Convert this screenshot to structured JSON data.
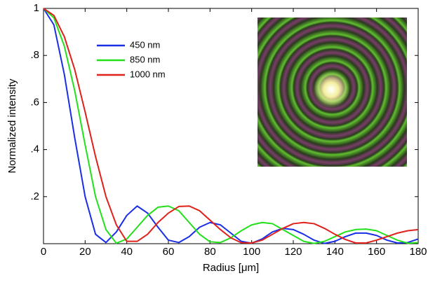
{
  "chart_data": {
    "type": "line",
    "xlabel": "Radius [μm]",
    "ylabel": "Normalized intensity",
    "x": [
      0,
      5,
      10,
      15,
      20,
      25,
      30,
      35,
      40,
      45,
      50,
      55,
      60,
      65,
      70,
      75,
      80,
      85,
      90,
      95,
      100,
      105,
      110,
      115,
      120,
      125,
      130,
      135,
      140,
      145,
      150,
      155,
      160,
      165,
      170,
      175,
      180
    ],
    "series": [
      {
        "name": "450 nm",
        "color": "#1a2ee8",
        "values": [
          1,
          0.93,
          0.72,
          0.45,
          0.2,
          0.04,
          0.005,
          0.05,
          0.12,
          0.16,
          0.13,
          0.07,
          0.015,
          0.005,
          0.03,
          0.07,
          0.09,
          0.08,
          0.045,
          0.01,
          0.002,
          0.02,
          0.05,
          0.065,
          0.06,
          0.04,
          0.015,
          0.001,
          0.01,
          0.03,
          0.045,
          0.045,
          0.035,
          0.015,
          0.003,
          0.005,
          0.02
        ]
      },
      {
        "name": "850 nm",
        "color": "#22e01a",
        "values": [
          1,
          0.96,
          0.84,
          0.65,
          0.42,
          0.2,
          0.06,
          0.002,
          0.02,
          0.07,
          0.12,
          0.155,
          0.16,
          0.14,
          0.09,
          0.04,
          0.008,
          0.005,
          0.025,
          0.055,
          0.08,
          0.09,
          0.085,
          0.06,
          0.035,
          0.01,
          0.001,
          0.01,
          0.03,
          0.05,
          0.06,
          0.062,
          0.055,
          0.035,
          0.015,
          0.002,
          0.005
        ]
      },
      {
        "name": "1000 nm",
        "color": "#e0201a",
        "values": [
          1,
          0.97,
          0.88,
          0.74,
          0.56,
          0.37,
          0.2,
          0.08,
          0.01,
          0.01,
          0.04,
          0.09,
          0.13,
          0.158,
          0.16,
          0.14,
          0.1,
          0.06,
          0.025,
          0.004,
          0.003,
          0.015,
          0.04,
          0.065,
          0.085,
          0.09,
          0.085,
          0.065,
          0.04,
          0.018,
          0.003,
          0.003,
          0.015,
          0.03,
          0.045,
          0.055,
          0.06
        ]
      }
    ],
    "xlim": [
      0,
      180
    ],
    "xticks": [
      0,
      20,
      40,
      60,
      80,
      100,
      120,
      140,
      160,
      180
    ],
    "ylim": [
      0,
      1
    ],
    "yticks": [
      {
        "value": 0.2,
        "label": ".2"
      },
      {
        "value": 0.4,
        "label": ".4"
      },
      {
        "value": 0.6,
        "label": ".6"
      },
      {
        "value": 0.8,
        "label": ".8"
      },
      1
    ],
    "grid": false,
    "legend": "upper left"
  }
}
